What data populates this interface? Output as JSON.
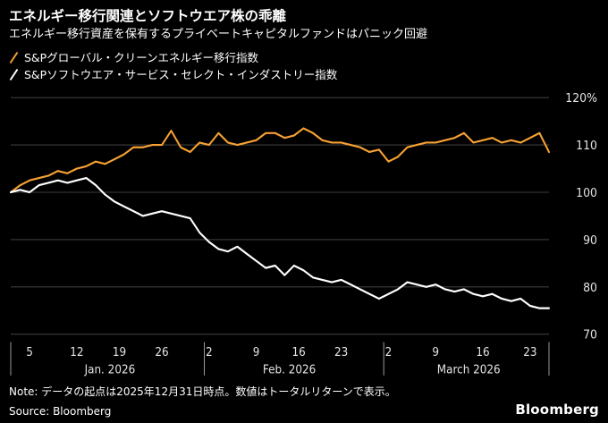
{
  "header": {
    "title": "エネルギー移行関連とソフトウエア株の乖離",
    "subtitle": "エネルギー移行資産を保有するプライベートキャピタルファンドはパニック回避"
  },
  "legend": [
    {
      "label": "S&Pグローバル・クリーンエネルギー移行指数",
      "color": "#F7A133"
    },
    {
      "label": "S&Pソフトウエア・サービス・セレクト・インダストリー指数",
      "color": "#FFFFFF"
    }
  ],
  "colors": {
    "background": "#000000",
    "text": "#FFFFFF",
    "grid": "#3d3d3d",
    "axis_text": "#e3e3e3",
    "divider": "#9a9a9a",
    "orange": "#F7A133"
  },
  "chart_data": {
    "type": "line",
    "title": "エネルギー移行関連とソフトウエア株の乖離",
    "xlabel": "",
    "ylabel": "",
    "ylim": [
      70,
      120
    ],
    "grid": true,
    "legend_position": "top-left",
    "y_ticks": [
      "120%",
      "110",
      "100",
      "90",
      "80",
      "70"
    ],
    "y_tick_values": [
      120,
      110,
      100,
      90,
      80,
      70
    ],
    "x_ticks": [
      {
        "label": "5",
        "i": 2
      },
      {
        "label": "12",
        "i": 7
      },
      {
        "label": "19",
        "i": 11.5
      },
      {
        "label": "26",
        "i": 16
      },
      {
        "label": "2",
        "i": 21
      },
      {
        "label": "9",
        "i": 26
      },
      {
        "label": "16",
        "i": 30.5
      },
      {
        "label": "23",
        "i": 35
      },
      {
        "label": "2",
        "i": 40
      },
      {
        "label": "9",
        "i": 45
      },
      {
        "label": "16",
        "i": 50
      },
      {
        "label": "23",
        "i": 55
      }
    ],
    "month_labels": [
      {
        "label": "Jan. 2026",
        "i": 10.5
      },
      {
        "label": "Feb. 2026",
        "i": 29.5
      },
      {
        "label": "March 2026",
        "i": 48.5
      }
    ],
    "axis_dividers": [
      0,
      20.5,
      39.5,
      57
    ],
    "series": [
      {
        "name": "S&Pグローバル・クリーンエネルギー移行指数",
        "color": "#F7A133",
        "values": [
          100,
          101.5,
          102.5,
          103,
          103.5,
          104.5,
          104,
          105,
          105.5,
          106.5,
          106,
          107,
          108,
          109.5,
          109.5,
          110,
          110,
          113,
          109.5,
          108.5,
          110.5,
          110,
          112.5,
          110.5,
          110,
          110.5,
          111,
          112.5,
          112.5,
          111.5,
          112,
          113.5,
          112.5,
          111,
          110.5,
          110.5,
          110,
          109.5,
          108.5,
          109,
          106.5,
          107.5,
          109.5,
          110,
          110.5,
          110.5,
          111,
          111.5,
          112.5,
          110.5,
          111,
          111.5,
          110.5,
          111,
          110.5,
          111.5,
          112.5,
          108.5
        ]
      },
      {
        "name": "S&Pソフトウエア・サービス・セレクト・インダストリー指数",
        "color": "#FFFFFF",
        "values": [
          100,
          100.5,
          100,
          101.5,
          102,
          102.5,
          102,
          102.5,
          103,
          101.5,
          99.5,
          98,
          97,
          96,
          95,
          95.5,
          96,
          95.5,
          95,
          94.5,
          91.5,
          89.5,
          88,
          87.5,
          88.5,
          87,
          85.5,
          84,
          84.5,
          82.5,
          84.5,
          83.5,
          82,
          81.5,
          81,
          81.5,
          80.5,
          79.5,
          78.5,
          77.5,
          78.5,
          79.5,
          81,
          80.5,
          80,
          80.5,
          79.5,
          79,
          79.5,
          78.5,
          78,
          78.5,
          77.5,
          77,
          77.5,
          76,
          75.5,
          75.5
        ]
      }
    ]
  },
  "footer": {
    "note": "Note: データの起点は2025年12月31日時点。数値はトータルリターンで表示。",
    "source": "Source: Bloomberg",
    "logo": "Bloomberg"
  }
}
